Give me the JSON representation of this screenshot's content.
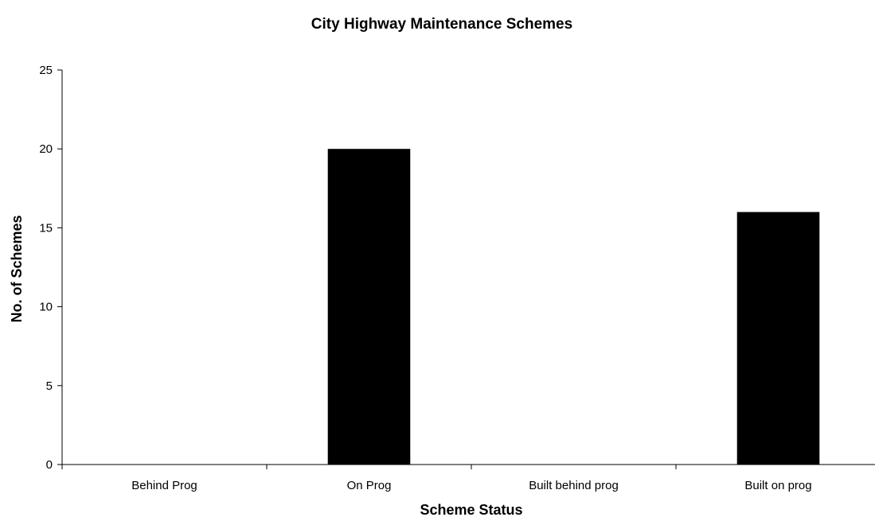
{
  "chart_data": {
    "type": "bar",
    "title": "City Highway Maintenance Schemes",
    "xlabel": "Scheme Status",
    "ylabel": "No. of Schemes",
    "categories": [
      "Behind Prog",
      "On Prog",
      "Built behind prog",
      "Built on prog"
    ],
    "values": [
      0,
      20,
      0,
      16
    ],
    "ylim": [
      0,
      25
    ],
    "yticks": [
      0,
      5,
      10,
      15,
      20,
      25
    ],
    "grid": false,
    "legend": "none",
    "bar_color": "#000000"
  }
}
